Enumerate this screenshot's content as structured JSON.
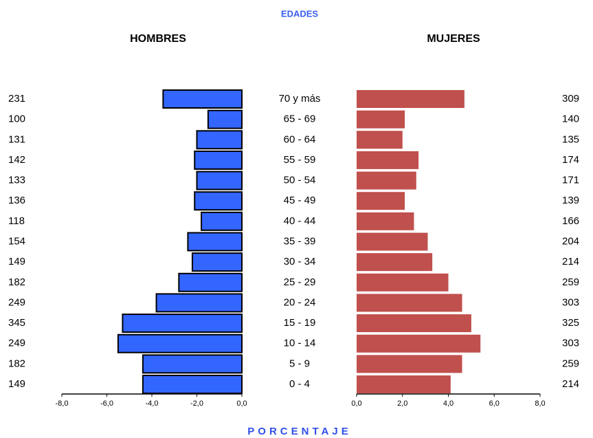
{
  "chart_data": {
    "type": "pyramid",
    "title": "EDADES",
    "xlabel": "PORCENTAJE",
    "categories": [
      "70 y más",
      "65 - 69",
      "60 - 64",
      "55 - 59",
      "50 - 54",
      "45 - 49",
      "40 - 44",
      "35 - 39",
      "30 - 34",
      "25 - 29",
      "20 - 24",
      "15 - 19",
      "10 - 14",
      "5 - 9",
      "0 - 4"
    ],
    "series": [
      {
        "name": "HOMBRES",
        "color": "#3366ff",
        "values": [
          -3.5,
          -1.5,
          -2.0,
          -2.1,
          -2.0,
          -2.1,
          -1.8,
          -2.4,
          -2.2,
          -2.8,
          -3.8,
          -5.3,
          -5.5,
          -4.4,
          -4.4
        ],
        "counts": [
          231,
          100,
          131,
          142,
          133,
          136,
          118,
          154,
          149,
          182,
          249,
          345,
          249,
          182,
          149
        ],
        "xlim": [
          -8,
          0
        ],
        "xticks": [
          {
            "value": -8,
            "label": "-8,0"
          },
          {
            "value": -6,
            "label": "-6,0"
          },
          {
            "value": -4,
            "label": "-4,0"
          },
          {
            "value": -2,
            "label": "-2,0"
          },
          {
            "value": 0,
            "label": "0,0"
          }
        ]
      },
      {
        "name": "MUJERES",
        "color": "#c0504d",
        "values": [
          4.7,
          2.1,
          2.0,
          2.7,
          2.6,
          2.1,
          2.5,
          3.1,
          3.3,
          4.0,
          4.6,
          5.0,
          5.4,
          4.6,
          4.1
        ],
        "counts": [
          309,
          140,
          135,
          174,
          171,
          139,
          166,
          204,
          214,
          259,
          303,
          325,
          303,
          259,
          214
        ],
        "xlim": [
          0,
          8
        ],
        "xticks": [
          {
            "value": 0,
            "label": "0,0"
          },
          {
            "value": 2,
            "label": "2,0"
          },
          {
            "value": 4,
            "label": "4,0"
          },
          {
            "value": 6,
            "label": "6,0"
          },
          {
            "value": 8,
            "label": "8,0"
          }
        ]
      }
    ]
  }
}
